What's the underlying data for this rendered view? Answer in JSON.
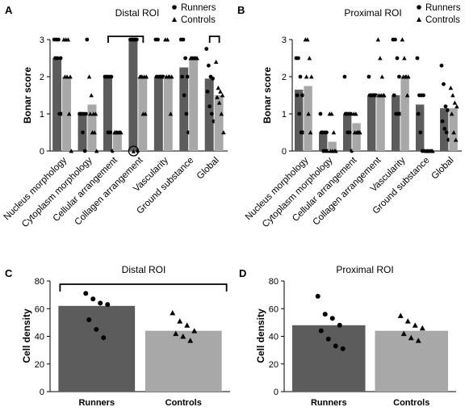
{
  "colors": {
    "runners": "#5c5c5c",
    "controls": "#a8a8a8",
    "marker": "#000000"
  },
  "chart_data": [
    {
      "panel": "A",
      "type": "bar",
      "title": "Distal ROI",
      "ylabel": "Bonar score",
      "ylim": [
        0,
        3
      ],
      "yticks": [
        0,
        1,
        2,
        3
      ],
      "legend": {
        "entries": [
          "Runners",
          "Controls"
        ],
        "markers": [
          "circle",
          "triangle"
        ],
        "position": "top-right"
      },
      "categories": [
        "Nucleus morphology",
        "Cytoplasm morphology",
        "Cellular arrangement",
        "Collagen arrangement",
        "Vascularity",
        "Ground substance",
        "Global"
      ],
      "series": [
        {
          "name": "Runners",
          "marker": "circle",
          "values": [
            2.5,
            1.0,
            2.0,
            3.0,
            2.0,
            2.25,
            1.95
          ],
          "points": [
            [
              3,
              3,
              3,
              2.5,
              2.5,
              2.5,
              1,
              1
            ],
            [
              1,
              1,
              1,
              1,
              1,
              0.5,
              0,
              3
            ],
            [
              2,
              2,
              2,
              2,
              2,
              0.5,
              0.5,
              0
            ],
            [
              3,
              3,
              3,
              3,
              3,
              3,
              3,
              0
            ],
            [
              3,
              3,
              2,
              2,
              2,
              2,
              2,
              2
            ],
            [
              3,
              3,
              2.5,
              2,
              2,
              1.5,
              1,
              0.5
            ],
            [
              2.75,
              2.3,
              2,
              1.95,
              1.6,
              1.2,
              1,
              0.8
            ]
          ]
        },
        {
          "name": "Controls",
          "marker": "triangle",
          "values": [
            2.0,
            1.25,
            0.5,
            2.0,
            2.0,
            2.5,
            1.5
          ],
          "points": [
            [
              3,
              3,
              3,
              2,
              2,
              2,
              1,
              0
            ],
            [
              2,
              1.5,
              1,
              1,
              1,
              0.5,
              0.5,
              0
            ],
            [
              0.5,
              0.5,
              0.5,
              0.5,
              0.5,
              0.5,
              0.5
            ],
            [
              2,
              2,
              2,
              2,
              2,
              1,
              1
            ],
            [
              3,
              3,
              2,
              2,
              2,
              2,
              1
            ],
            [
              2.5,
              2.5,
              2.5,
              2.5,
              2.5,
              2.5,
              2.5
            ],
            [
              2.4,
              1.7,
              1.6,
              1.5,
              1.45,
              1.3,
              1,
              0.5
            ]
          ]
        }
      ],
      "brackets": [
        [
          "Cellular arrangement",
          "Collagen arrangement"
        ],
        [
          "Global",
          "Global"
        ]
      ],
      "annotations": [
        {
          "category": "Collagen arrangement",
          "shape": "circle",
          "y": 0
        }
      ]
    },
    {
      "panel": "B",
      "type": "bar",
      "title": "Proximal ROI",
      "ylabel": "Bonar score",
      "ylim": [
        0,
        3
      ],
      "yticks": [
        0,
        1,
        2,
        3
      ],
      "legend": {
        "entries": [
          "Runners",
          "Controls"
        ],
        "markers": [
          "circle",
          "triangle"
        ],
        "position": "top-right"
      },
      "categories": [
        "Nucleus morphology",
        "Cytoplasm morphology",
        "Cellular arrangement",
        "Collagen arrangement",
        "Vascularity",
        "Ground substance",
        "Global"
      ],
      "series": [
        {
          "name": "Runners",
          "marker": "circle",
          "values": [
            1.65,
            0.5,
            1.0,
            1.5,
            1.5,
            1.25,
            1.15
          ],
          "points": [
            [
              2.5,
              2.5,
              2,
              1.5,
              1.5,
              1,
              0.5,
              0.5
            ],
            [
              1,
              0.5,
              0.5,
              0.5,
              0.5,
              0,
              0,
              0
            ],
            [
              2,
              1,
              1,
              1,
              1,
              0.5,
              0.5,
              0
            ],
            [
              2,
              1.5,
              1.5,
              1.5,
              1.5,
              1.5,
              1.5,
              1.5
            ],
            [
              3,
              3,
              2.5,
              2,
              1.5,
              1,
              1,
              1
            ],
            [
              2.5,
              1.5,
              1.5,
              1.5,
              1,
              0.5,
              0,
              0
            ],
            [
              2.3,
              1.8,
              1.2,
              1.1,
              0.8,
              0.6,
              0.5,
              0.3
            ]
          ]
        },
        {
          "name": "Controls",
          "marker": "triangle",
          "values": [
            1.75,
            0.25,
            0.75,
            1.5,
            2.0,
            0.0,
            1.15
          ],
          "points": [
            [
              3,
              3,
              2.5,
              2,
              2,
              1,
              0.5
            ],
            [
              1,
              1,
              0.5,
              0,
              0,
              0,
              0
            ],
            [
              1,
              1,
              0.5,
              0.5,
              0.5,
              0.5,
              0.5
            ],
            [
              3,
              2.5,
              2,
              1.5,
              1.5,
              1.5,
              1.5
            ],
            [
              3,
              2.5,
              2,
              2,
              2,
              2,
              1.5
            ],
            [
              0,
              0,
              0,
              0,
              0,
              0,
              0
            ],
            [
              1.7,
              1.5,
              1.3,
              1.2,
              1,
              0.5,
              0.3
            ]
          ]
        }
      ],
      "brackets": [],
      "annotations": []
    },
    {
      "panel": "C",
      "type": "bar",
      "title": "Distal ROI",
      "ylabel": "Cell density",
      "ylim": [
        0,
        80
      ],
      "yticks": [
        0,
        20,
        40,
        60,
        80
      ],
      "categories": [
        "Runners",
        "Controls"
      ],
      "values": [
        62,
        44
      ],
      "points": [
        [
          71,
          67,
          64,
          63,
          52,
          45,
          39
        ],
        [
          57,
          51,
          48,
          44,
          42,
          40,
          37
        ]
      ],
      "markers": [
        "circle",
        "triangle"
      ],
      "brackets": [
        [
          "Runners",
          "Controls"
        ]
      ]
    },
    {
      "panel": "D",
      "type": "bar",
      "title": "Proximal ROI",
      "ylabel": "Cell density",
      "ylim": [
        0,
        80
      ],
      "yticks": [
        0,
        20,
        40,
        60,
        80
      ],
      "categories": [
        "Runners",
        "Controls"
      ],
      "values": [
        48,
        44
      ],
      "points": [
        [
          69,
          56,
          53,
          48,
          44,
          38,
          33,
          31
        ],
        [
          55,
          51,
          48,
          46,
          42,
          39,
          37
        ]
      ],
      "markers": [
        "circle",
        "triangle"
      ],
      "brackets": []
    }
  ]
}
